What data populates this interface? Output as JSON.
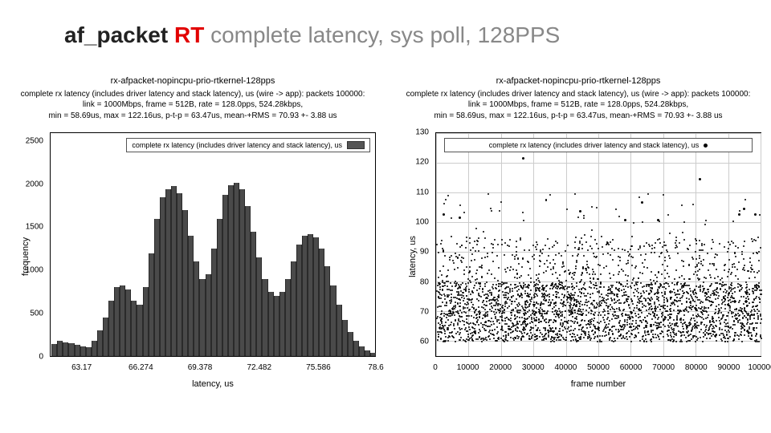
{
  "title": {
    "part1": "af_packet",
    "part2": "RT",
    "part3": " complete latency, sys poll, 128PPS"
  },
  "histogram": {
    "type": "histogram",
    "main_title": "rx-afpacket-nopincpu-prio-rtkernel-128pps",
    "sub1": "complete rx latency (includes driver latency and stack latency), us (wire -> app): packets 100000:",
    "sub2": "link = 1000Mbps, frame = 512B, rate = 128.0pps, 524.28kbps,",
    "sub3": "min = 58.69us, max = 122.16us, p-t-p = 63.47us, mean-+RMS = 70.93 +- 3.88 us",
    "xlabel": "latency, us",
    "ylabel": "frequency",
    "legend": "complete rx latency (includes driver latency and stack latency), us",
    "xlim": [
      61.5,
      78.6
    ],
    "ylim": [
      0,
      2600
    ],
    "xticks": [
      63.17,
      66.274,
      69.378,
      72.482,
      75.586,
      78.6
    ],
    "yticks": [
      0,
      500,
      1000,
      1500,
      2000,
      2500
    ],
    "bar_color": "#4a4a4a",
    "bar_edge": "#2a2a2a",
    "grid_color": "#cccccc",
    "bg_color": "#ffffff",
    "title_fontsize": 11,
    "label_fontsize": 11,
    "tick_fontsize": 10,
    "bins_x": [
      61.7,
      62.0,
      62.3,
      62.6,
      62.9,
      63.2,
      63.5,
      63.8,
      64.1,
      64.4,
      64.7,
      65.0,
      65.3,
      65.6,
      65.9,
      66.2,
      66.5,
      66.8,
      67.1,
      67.4,
      67.7,
      68.0,
      68.3,
      68.6,
      68.9,
      69.2,
      69.5,
      69.8,
      70.1,
      70.4,
      70.7,
      71.0,
      71.3,
      71.6,
      71.9,
      72.2,
      72.5,
      72.8,
      73.1,
      73.4,
      73.7,
      74.0,
      74.3,
      74.6,
      74.9,
      75.2,
      75.5,
      75.8,
      76.1,
      76.4,
      76.7,
      77.0,
      77.3,
      77.6,
      77.9,
      78.2,
      78.5
    ],
    "bins_y": [
      140,
      180,
      160,
      150,
      130,
      110,
      100,
      180,
      300,
      450,
      650,
      800,
      820,
      780,
      650,
      600,
      800,
      1200,
      1600,
      1850,
      1950,
      1980,
      1900,
      1700,
      1400,
      1100,
      900,
      950,
      1250,
      1600,
      1880,
      1990,
      2020,
      1950,
      1750,
      1450,
      1150,
      900,
      750,
      700,
      750,
      900,
      1100,
      1300,
      1400,
      1420,
      1380,
      1250,
      1050,
      820,
      600,
      420,
      280,
      180,
      110,
      70,
      40
    ]
  },
  "scatter": {
    "type": "scatter",
    "main_title": "rx-afpacket-nopincpu-prio-rtkernel-128pps",
    "sub1": "complete rx latency (includes driver latency and stack latency), us (wire -> app): packets 100000:",
    "sub2": "link = 1000Mbps, frame = 512B, rate = 128.0pps, 524.28kbps,",
    "sub3": "min = 58.69us, max = 122.16us, p-t-p = 63.47us, mean-+RMS = 70.93 +- 3.88 us",
    "xlabel": "frame number",
    "ylabel": "latency, us",
    "legend": "complete rx latency (includes driver latency and stack latency), us",
    "xlim": [
      0,
      100000
    ],
    "ylim": [
      55,
      130
    ],
    "xticks": [
      0,
      10000,
      20000,
      30000,
      40000,
      50000,
      60000,
      70000,
      80000,
      90000,
      100000
    ],
    "yticks": [
      60,
      70,
      80,
      90,
      100,
      110,
      120,
      130
    ],
    "dot_color": "#000000",
    "grid_color": "#cccccc",
    "bg_color": "#ffffff",
    "title_fontsize": 11,
    "label_fontsize": 11,
    "tick_fontsize": 10,
    "dense_band": {
      "ymin": 60,
      "ymax": 80,
      "n_points": 2600
    },
    "mid_band": {
      "ymin": 80,
      "ymax": 95,
      "n_points": 520
    },
    "sparse_band": {
      "ymin": 95,
      "ymax": 110,
      "n_points": 55
    },
    "outliers": [
      {
        "x": 2000,
        "y": 103
      },
      {
        "x": 7000,
        "y": 102
      },
      {
        "x": 26500,
        "y": 122
      },
      {
        "x": 44000,
        "y": 104
      },
      {
        "x": 58000,
        "y": 101
      },
      {
        "x": 63000,
        "y": 107
      },
      {
        "x": 68000,
        "y": 101
      },
      {
        "x": 81000,
        "y": 115
      },
      {
        "x": 93000,
        "y": 103
      },
      {
        "x": 94500,
        "y": 105
      },
      {
        "x": 98000,
        "y": 103
      }
    ]
  }
}
